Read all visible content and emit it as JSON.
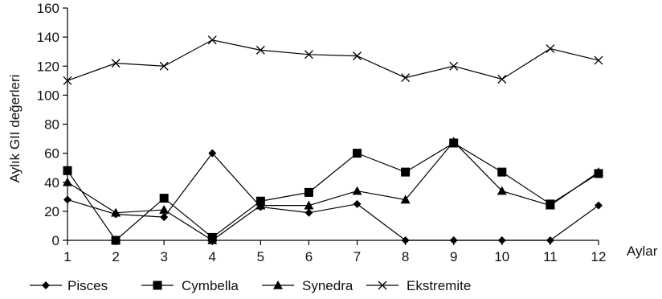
{
  "chart_data": {
    "type": "line",
    "xlabel": "Aylar",
    "ylabel": "Aylık GII değerleri",
    "x": [
      1,
      2,
      3,
      4,
      5,
      6,
      7,
      8,
      9,
      10,
      11,
      12
    ],
    "x_tick_labels": [
      "1",
      "2",
      "3",
      "4",
      "5",
      "6",
      "7",
      "8",
      "9",
      "10",
      "11",
      "12"
    ],
    "y_tick_labels": [
      "0",
      "20",
      "40",
      "60",
      "80",
      "100",
      "120",
      "140",
      "160"
    ],
    "ylim": [
      0,
      160
    ],
    "grid": false,
    "legend_position": "bottom",
    "series": [
      {
        "name": "Pisces",
        "marker": "diamond-icon",
        "values": [
          28,
          18,
          16,
          60,
          23,
          19,
          25,
          0,
          0,
          0,
          0,
          24
        ]
      },
      {
        "name": "Cymbella",
        "marker": "square-icon",
        "values": [
          48,
          0,
          29,
          2,
          27,
          33,
          60,
          47,
          67,
          47,
          25,
          46
        ]
      },
      {
        "name": "Synedra",
        "marker": "triangle-icon",
        "values": [
          40,
          19,
          21,
          0,
          24,
          24,
          34,
          28,
          68,
          34,
          24,
          47
        ]
      },
      {
        "name": "Ekstremite",
        "marker": "cross-icon",
        "values": [
          110,
          122,
          120,
          138,
          131,
          128,
          127,
          112,
          120,
          111,
          132,
          124
        ]
      }
    ]
  }
}
